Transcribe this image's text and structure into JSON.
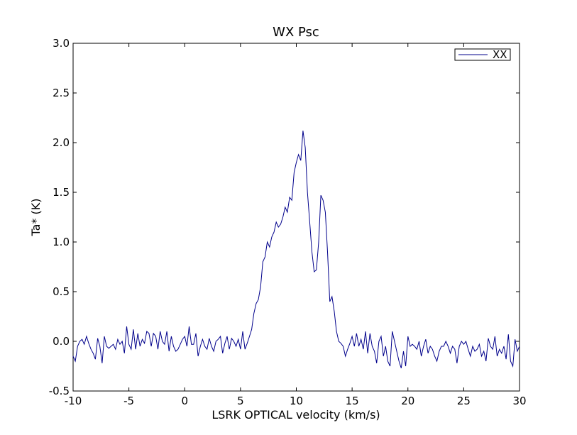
{
  "chart_data": {
    "type": "line",
    "title": "WX Psc",
    "xlabel": "LSRK OPTICAL velocity (km/s)",
    "ylabel": "Ta* (K)",
    "xlim": [
      -10,
      30
    ],
    "ylim": [
      -0.5,
      3.0
    ],
    "xticks": [
      -10,
      -5,
      0,
      5,
      10,
      15,
      20,
      25,
      30
    ],
    "yticks": [
      -0.5,
      0.0,
      0.5,
      1.0,
      1.5,
      2.0,
      2.5,
      3.0
    ],
    "xtick_labels": [
      "-10",
      "-5",
      "0",
      "5",
      "10",
      "15",
      "20",
      "25",
      "30"
    ],
    "ytick_labels": [
      "-0.5",
      "0.0",
      "0.5",
      "1.0",
      "1.5",
      "2.0",
      "2.5",
      "3.0"
    ],
    "grid": false,
    "legend": "top-right",
    "series": [
      {
        "name": "XX",
        "color": "#00008b",
        "x": [
          -10.0,
          -9.8,
          -9.6,
          -9.4,
          -9.2,
          -9.0,
          -8.8,
          -8.6,
          -8.4,
          -8.2,
          -8.0,
          -7.8,
          -7.6,
          -7.4,
          -7.2,
          -7.0,
          -6.8,
          -6.6,
          -6.4,
          -6.2,
          -6.0,
          -5.8,
          -5.6,
          -5.4,
          -5.2,
          -5.0,
          -4.8,
          -4.6,
          -4.4,
          -4.2,
          -4.0,
          -3.8,
          -3.6,
          -3.4,
          -3.2,
          -3.0,
          -2.8,
          -2.6,
          -2.4,
          -2.2,
          -2.0,
          -1.8,
          -1.6,
          -1.4,
          -1.2,
          -1.0,
          -0.8,
          -0.6,
          -0.4,
          -0.2,
          0.0,
          0.2,
          0.4,
          0.6,
          0.8,
          1.0,
          1.2,
          1.4,
          1.6,
          1.8,
          2.0,
          2.2,
          2.4,
          2.6,
          2.8,
          3.0,
          3.2,
          3.4,
          3.6,
          3.8,
          4.0,
          4.2,
          4.4,
          4.6,
          4.8,
          5.0,
          5.2,
          5.4,
          5.6,
          5.8,
          6.0,
          6.2,
          6.4,
          6.6,
          6.8,
          7.0,
          7.2,
          7.4,
          7.6,
          7.8,
          8.0,
          8.2,
          8.4,
          8.6,
          8.8,
          9.0,
          9.2,
          9.4,
          9.6,
          9.8,
          10.0,
          10.2,
          10.4,
          10.6,
          10.8,
          11.0,
          11.2,
          11.4,
          11.6,
          11.8,
          12.0,
          12.2,
          12.4,
          12.6,
          12.8,
          13.0,
          13.2,
          13.4,
          13.6,
          13.8,
          14.0,
          14.2,
          14.4,
          14.6,
          14.8,
          15.0,
          15.2,
          15.4,
          15.6,
          15.8,
          16.0,
          16.2,
          16.4,
          16.6,
          16.8,
          17.0,
          17.2,
          17.4,
          17.6,
          17.8,
          18.0,
          18.2,
          18.4,
          18.6,
          18.8,
          19.0,
          19.2,
          19.4,
          19.6,
          19.8,
          20.0,
          20.2,
          20.4,
          20.6,
          20.8,
          21.0,
          21.2,
          21.4,
          21.6,
          21.8,
          22.0,
          22.2,
          22.4,
          22.6,
          22.8,
          23.0,
          23.2,
          23.4,
          23.6,
          23.8,
          24.0,
          24.2,
          24.4,
          24.6,
          24.8,
          25.0,
          25.2,
          25.4,
          25.6,
          25.8,
          26.0,
          26.2,
          26.4,
          26.6,
          26.8,
          27.0,
          27.2,
          27.4,
          27.6,
          27.8,
          28.0,
          28.2,
          28.4,
          28.6,
          28.8,
          29.0,
          29.2,
          29.4,
          29.6,
          29.8,
          30.0
        ],
        "y": [
          -0.15,
          -0.2,
          -0.05,
          0.0,
          0.02,
          -0.03,
          0.05,
          -0.02,
          -0.08,
          -0.12,
          -0.18,
          0.03,
          -0.05,
          -0.22,
          0.05,
          -0.05,
          -0.07,
          -0.05,
          -0.03,
          -0.08,
          0.02,
          -0.03,
          0.0,
          -0.12,
          0.15,
          -0.03,
          -0.08,
          0.12,
          -0.08,
          0.08,
          -0.05,
          0.02,
          -0.02,
          0.1,
          0.08,
          -0.05,
          0.08,
          0.05,
          -0.08,
          0.1,
          0.0,
          -0.03,
          0.1,
          -0.1,
          0.05,
          -0.05,
          -0.1,
          -0.08,
          -0.03,
          0.02,
          0.05,
          -0.05,
          0.15,
          -0.03,
          -0.03,
          0.08,
          -0.15,
          -0.05,
          0.02,
          -0.05,
          -0.08,
          0.03,
          -0.05,
          -0.1,
          0.0,
          0.02,
          0.05,
          -0.12,
          -0.02,
          0.05,
          -0.08,
          0.03,
          0.0,
          -0.05,
          0.02,
          -0.08,
          0.1,
          -0.08,
          -0.02,
          0.05,
          0.12,
          0.28,
          0.38,
          0.42,
          0.55,
          0.8,
          0.85,
          1.0,
          0.95,
          1.05,
          1.1,
          1.2,
          1.15,
          1.18,
          1.25,
          1.35,
          1.3,
          1.45,
          1.42,
          1.7,
          1.8,
          1.88,
          1.82,
          2.12,
          1.95,
          1.5,
          1.2,
          0.9,
          0.7,
          0.72,
          1.0,
          1.47,
          1.42,
          1.3,
          0.9,
          0.4,
          0.45,
          0.3,
          0.1,
          0.0,
          -0.02,
          -0.05,
          -0.15,
          -0.08,
          -0.02,
          0.05,
          -0.05,
          0.08,
          -0.05,
          0.02,
          -0.08,
          0.1,
          -0.12,
          0.08,
          -0.05,
          -0.1,
          -0.22,
          0.0,
          0.05,
          -0.15,
          -0.05,
          -0.2,
          -0.25,
          0.1,
          0.0,
          -0.1,
          -0.2,
          -0.27,
          -0.1,
          -0.25,
          0.05,
          -0.05,
          -0.03,
          -0.05,
          -0.08,
          0.0,
          -0.15,
          -0.05,
          0.02,
          -0.12,
          -0.05,
          -0.08,
          -0.15,
          -0.2,
          -0.1,
          -0.05,
          -0.05,
          0.0,
          -0.05,
          -0.12,
          -0.05,
          -0.08,
          -0.22,
          -0.05,
          0.0,
          -0.03,
          0.0,
          -0.08,
          -0.15,
          -0.05,
          -0.1,
          -0.08,
          -0.03,
          -0.15,
          -0.1,
          -0.2,
          0.03,
          -0.05,
          -0.08,
          0.05,
          -0.15,
          -0.08,
          -0.12,
          -0.05,
          -0.18,
          0.07,
          -0.2,
          -0.25,
          0.02,
          -0.1,
          -0.05
        ]
      }
    ]
  }
}
